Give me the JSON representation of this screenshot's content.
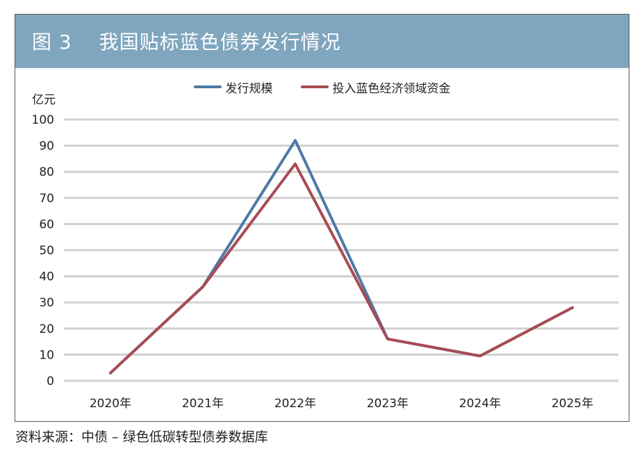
{
  "figure": {
    "title": "图 3　 我国贴标蓝色债券发行情况",
    "source": "资料来源：中债 – 绿色低碳转型债券数据库"
  },
  "chart_data": {
    "type": "line",
    "title": "图 3　 我国贴标蓝色债券发行情况",
    "ylabel": "亿元",
    "xlabel": "",
    "categories": [
      "2020年",
      "2021年",
      "2022年",
      "2023年",
      "2024年",
      "2025年"
    ],
    "yticks": [
      "0",
      "10",
      "20",
      "30",
      "40",
      "50",
      "60",
      "70",
      "80",
      "90",
      "100"
    ],
    "ylim": [
      0,
      100
    ],
    "grid": true,
    "legend_position": "top-center",
    "series": [
      {
        "name": "发行规模",
        "color": "#4e78a6",
        "values": [
          3,
          36,
          92,
          16,
          9.5,
          28
        ]
      },
      {
        "name": "投入蓝色经济领域资金",
        "color": "#a84b54",
        "values": [
          3,
          36,
          83,
          16,
          9.5,
          28
        ]
      }
    ]
  }
}
